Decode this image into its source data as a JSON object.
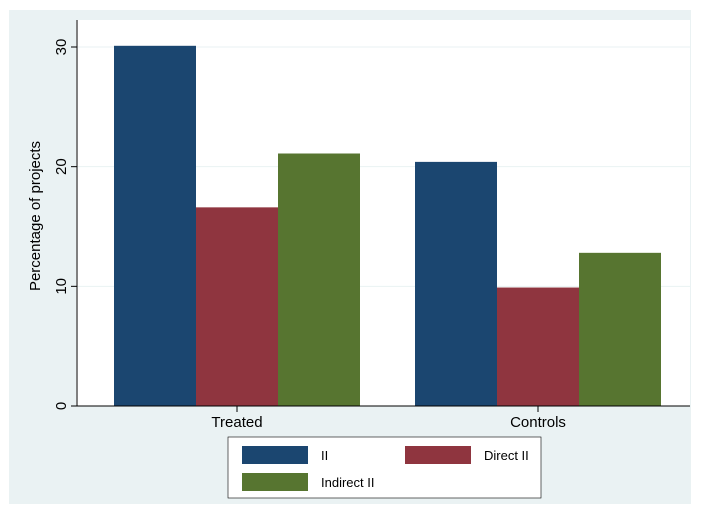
{
  "chart_data": {
    "type": "bar",
    "title": "",
    "xlabel": "",
    "ylabel": "Percentage of projects",
    "categories": [
      "Treated",
      "Controls"
    ],
    "series": [
      {
        "name": "II",
        "values": [
          30.1,
          20.4
        ],
        "color": "#1b4670"
      },
      {
        "name": "Direct II",
        "values": [
          16.6,
          9.9
        ],
        "color": "#8f353f"
      },
      {
        "name": "Indirect II",
        "values": [
          21.1,
          12.8
        ],
        "color": "#577530"
      }
    ],
    "ylim": [
      0,
      30
    ],
    "yticks": [
      0,
      10,
      20,
      30
    ],
    "grid": true,
    "legend": "bottom",
    "colors": {
      "background": "#eaf2f3",
      "plot": "#ffffff",
      "grid": "#eaf2f3"
    }
  }
}
